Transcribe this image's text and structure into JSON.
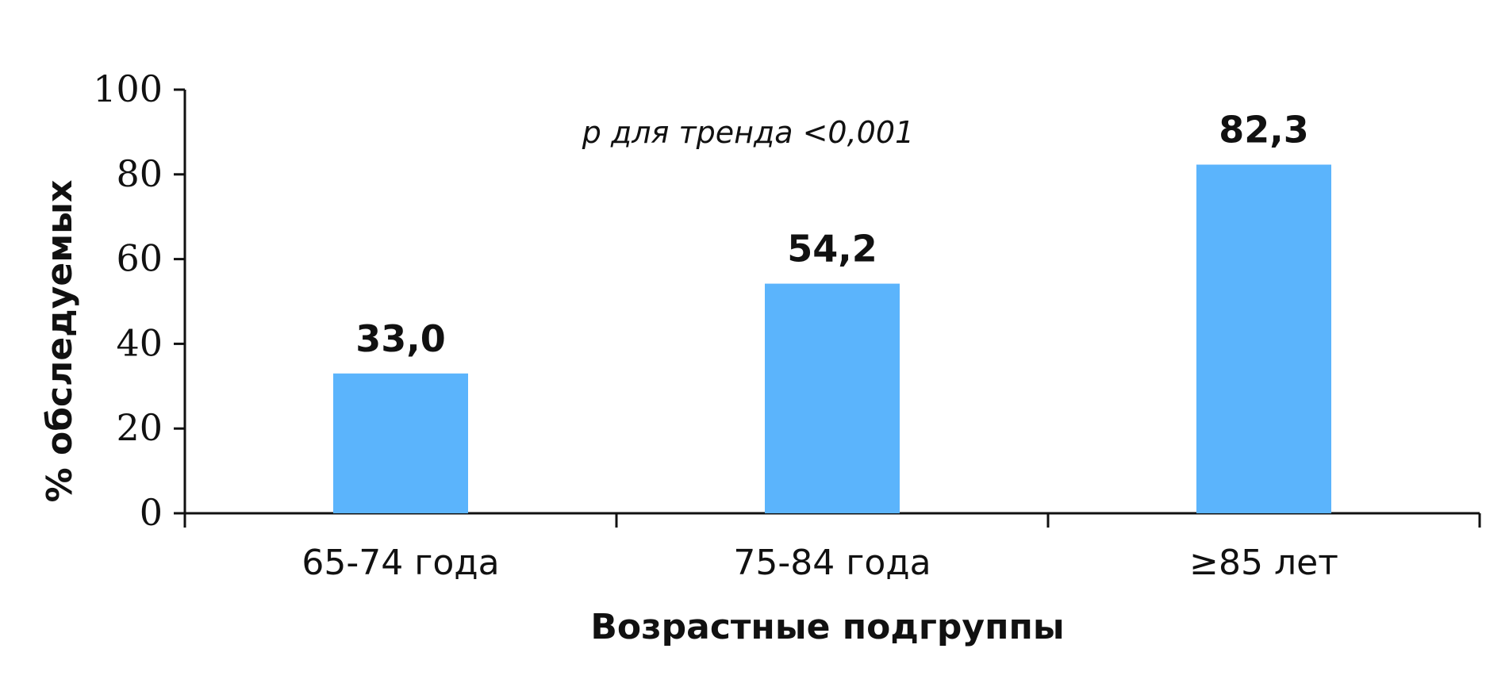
{
  "chart_data": {
    "type": "bar",
    "categories": [
      "65-74 года",
      "75-84 года",
      "≥85 лет"
    ],
    "values": [
      33.0,
      54.2,
      82.3
    ],
    "value_labels": [
      "33,0",
      "54,2",
      "82,3"
    ],
    "title": "",
    "xlabel": "Возрастные подгруппы",
    "ylabel": "% обследуемых",
    "ylim": [
      0,
      100
    ],
    "yticks": [
      0,
      20,
      40,
      60,
      80,
      100
    ],
    "annotation": "p для тренда <0,001",
    "grid": false,
    "bar_color": "#5BB4FC",
    "axis_color": "#111111"
  }
}
